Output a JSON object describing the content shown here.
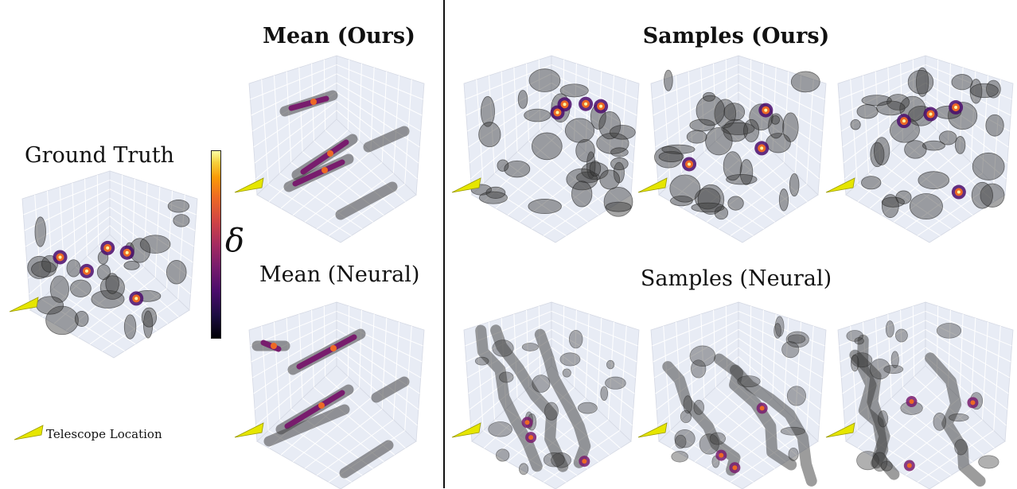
{
  "labels": {
    "ground_truth": "Ground Truth",
    "mean_ours": "Mean (Ours)",
    "mean_neural": "Mean (Neural)",
    "samples_ours": "Samples (Ours)",
    "samples_neural": "Samples (Neural)",
    "delta": "δ",
    "telescope": "Telescope Location"
  },
  "colors": {
    "cube_face": "#e8ecf5",
    "grid": "#ffffff",
    "blob": "#3a3a3a",
    "colormap": [
      "#000004",
      "#4a0c6b",
      "#a52c60",
      "#ed6925",
      "#fcffa4"
    ],
    "telescope": "#e6e600"
  },
  "panels": [
    {
      "id": "ground-truth",
      "style": "blobs"
    },
    {
      "id": "mean-ours",
      "style": "streaks"
    },
    {
      "id": "mean-neural",
      "style": "streaks"
    },
    {
      "id": "sample-ours-1",
      "style": "blobs"
    },
    {
      "id": "sample-ours-2",
      "style": "blobs"
    },
    {
      "id": "sample-ours-3",
      "style": "blobs"
    },
    {
      "id": "sample-neural-1",
      "style": "filaments"
    },
    {
      "id": "sample-neural-2",
      "style": "filaments"
    },
    {
      "id": "sample-neural-3",
      "style": "filaments"
    }
  ]
}
